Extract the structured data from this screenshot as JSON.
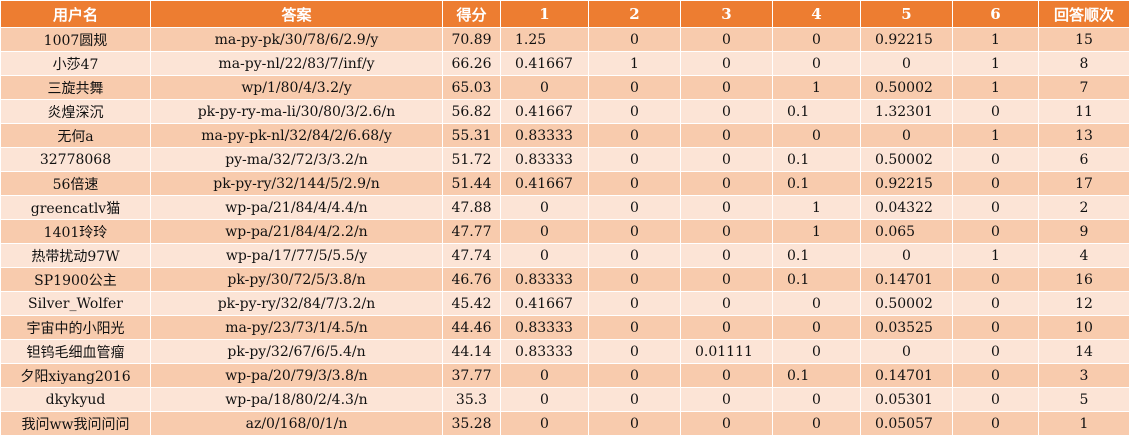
{
  "headers": [
    "用户名",
    "答案",
    "得分",
    "1",
    "2",
    "3",
    "4",
    "5",
    "6",
    "回答顺次"
  ],
  "rows": [
    [
      "1007圆规",
      "ma-py-pk/30/78/6/2.9/y",
      "70.89",
      "1.25",
      "0",
      "0",
      "0",
      "0.92215",
      "1",
      "15"
    ],
    [
      "小莎47",
      "ma-py-nl/22/83/7/inf/y",
      "66.26",
      "0.41667",
      "1",
      "0",
      "0",
      "0",
      "1",
      "8"
    ],
    [
      "三旋共舞",
      "wp/1/80/4/3.2/y",
      "65.03",
      "0",
      "0",
      "0",
      "1",
      "0.50002",
      "1",
      "7"
    ],
    [
      "炎煌深沉",
      "pk-py-ry-ma-li/30/80/3/2.6/n",
      "56.82",
      "0.41667",
      "0",
      "0",
      "0.1",
      "1.32301",
      "0",
      "11"
    ],
    [
      "无何a",
      "ma-py-pk-nl/32/84/2/6.68/y",
      "55.31",
      "0.83333",
      "0",
      "0",
      "0",
      "0",
      "1",
      "13"
    ],
    [
      "32778068",
      "py-ma/32/72/3/3.2/n",
      "51.72",
      "0.83333",
      "0",
      "0",
      "0.1",
      "0.50002",
      "0",
      "6"
    ],
    [
      "56倍速",
      "pk-py-ry/32/144/5/2.9/n",
      "51.44",
      "0.41667",
      "0",
      "0",
      "0.1",
      "0.92215",
      "0",
      "17"
    ],
    [
      "greencatlv猫",
      "wp-pa/21/84/4/4.4/n",
      "47.88",
      "0",
      "0",
      "0",
      "1",
      "0.04322",
      "0",
      "2"
    ],
    [
      "1401玲玲",
      "wp-pa/21/84/4/2.2/n",
      "47.77",
      "0",
      "0",
      "0",
      "1",
      "0.065",
      "0",
      "9"
    ],
    [
      "热带扰动97W",
      "wp-pa/17/77/5/5.5/y",
      "47.74",
      "0",
      "0",
      "0",
      "0.1",
      "0",
      "1",
      "4"
    ],
    [
      "SP1900公主",
      "pk-py/30/72/5/3.8/n",
      "46.76",
      "0.83333",
      "0",
      "0",
      "0.1",
      "0.14701",
      "0",
      "16"
    ],
    [
      "Silver_Wolfer",
      "pk-py-ry/32/84/7/3.2/n",
      "45.42",
      "0.41667",
      "0",
      "0",
      "0",
      "0.50002",
      "0",
      "12"
    ],
    [
      "宇宙中的小阳光",
      "ma-py/23/73/1/4.5/n",
      "44.46",
      "0.83333",
      "0",
      "0",
      "0",
      "0.03525",
      "0",
      "10"
    ],
    [
      "钽钨毛细血管瘤",
      "pk-py/32/67/6/5.4/n",
      "44.14",
      "0.83333",
      "0",
      "0.01111",
      "0",
      "0",
      "0",
      "14"
    ],
    [
      "夕阳xiyang2016",
      "wp-pa/20/79/3/3.8/n",
      "37.77",
      "0",
      "0",
      "0",
      "0.1",
      "0.14701",
      "0",
      "3"
    ],
    [
      "dkykyud",
      "wp-pa/18/80/2/4.3/n",
      "35.3",
      "0",
      "0",
      "0",
      "0",
      "0.05301",
      "0",
      "5"
    ],
    [
      "我问ww我问问问",
      "az/0/168/0/1/n",
      "35.28",
      "0",
      "0",
      "0",
      "0",
      "0.05057",
      "0",
      "1"
    ]
  ]
}
